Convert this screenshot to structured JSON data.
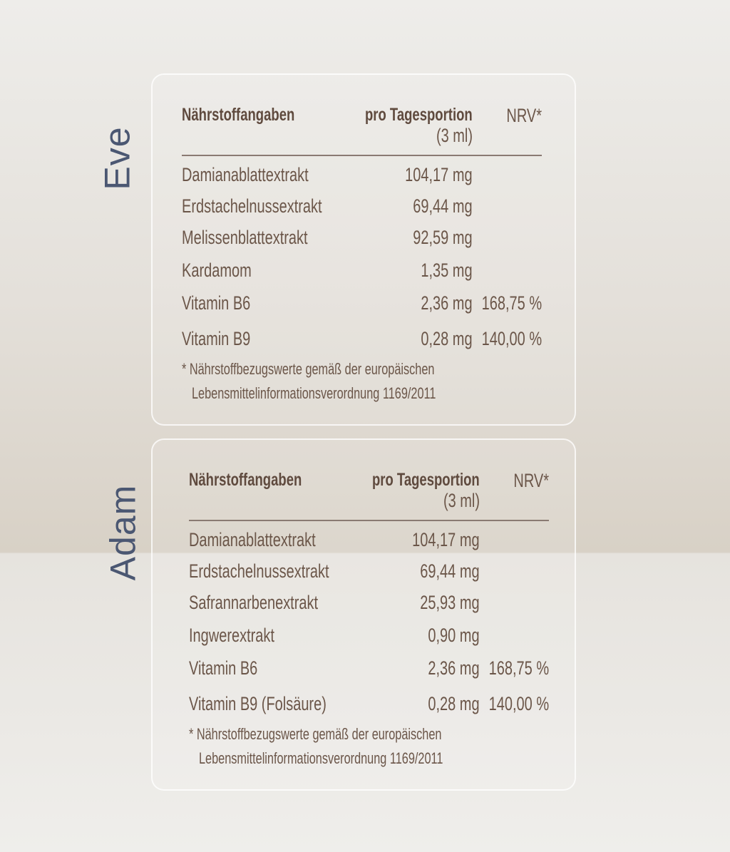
{
  "tables": [
    {
      "product": "Eve",
      "header": {
        "nutrient": "Nährstoffangaben",
        "amount": "pro Tagesportion",
        "portion": "(3 ml)",
        "nrv": "NRV*"
      },
      "rows": [
        {
          "name": "Damianablattextrakt",
          "amount": "104,17 mg",
          "nrv": ""
        },
        {
          "name": "Erdstachelnussextrakt",
          "amount": "69,44 mg",
          "nrv": ""
        },
        {
          "name": "Melissenblattextrakt",
          "amount": "92,59 mg",
          "nrv": ""
        },
        {
          "name": "Kardamom",
          "amount": "1,35 mg",
          "nrv": ""
        },
        {
          "name": "Vitamin B6",
          "amount": "2,36 mg",
          "nrv": "168,75 %"
        },
        {
          "name": "Vitamin B9",
          "amount": "0,28 mg",
          "nrv": "140,00 %"
        }
      ],
      "footnote": [
        "* Nährstoffbezugswerte gemäß der europäischen",
        "Lebensmittelinformationsverordnung 1169/2011"
      ]
    },
    {
      "product": "Adam",
      "header": {
        "nutrient": "Nährstoffangaben",
        "amount": "pro Tagesportion",
        "portion": "(3 ml)",
        "nrv": "NRV*"
      },
      "rows": [
        {
          "name": "Damianablattextrakt",
          "amount": "104,17 mg",
          "nrv": ""
        },
        {
          "name": "Erdstachelnussextrakt",
          "amount": "69,44 mg",
          "nrv": ""
        },
        {
          "name": "Safrannarbenextrakt",
          "amount": "25,93 mg",
          "nrv": ""
        },
        {
          "name": "Ingwerextrakt",
          "amount": "0,90 mg",
          "nrv": ""
        },
        {
          "name": "Vitamin B6",
          "amount": "2,36 mg",
          "nrv": "168,75 %"
        },
        {
          "name": "Vitamin B9 (Folsäure)",
          "amount": "0,28 mg",
          "nrv": "140,00 %"
        }
      ],
      "footnote": [
        "* Nährstoffbezugswerte gemäß der europäischen",
        "Lebensmittelinformationsverordnung 1169/2011"
      ]
    }
  ]
}
